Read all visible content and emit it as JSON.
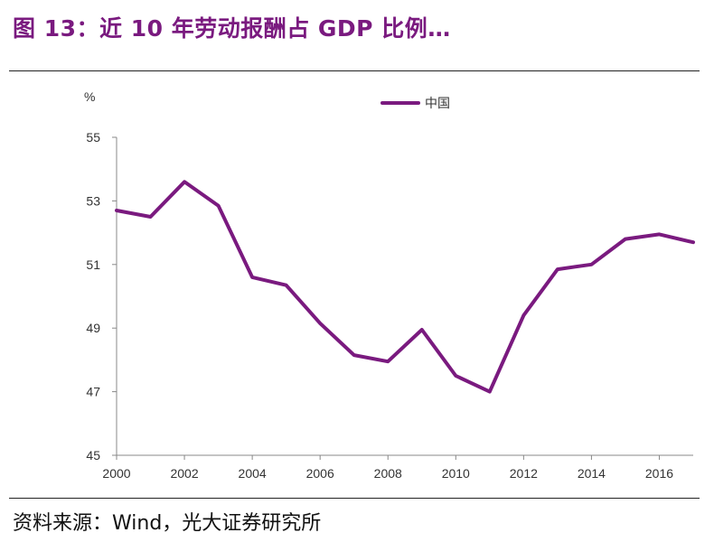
{
  "figure": {
    "title": "图 13：近 10 年劳动报酬占 GDP 比例…",
    "source": "资料来源：Wind，光大证券研究所"
  },
  "colors": {
    "series": "#7a1a7f",
    "axis": "#888888",
    "text": "#333333",
    "title": "#7a1a7f"
  },
  "chart_data": {
    "type": "line",
    "title": "",
    "ylabel": "%",
    "xlabel": "",
    "ylim": [
      45,
      55
    ],
    "xlim": [
      2000,
      2017
    ],
    "yticks": [
      45,
      47,
      49,
      51,
      53,
      55
    ],
    "xticks": [
      2000,
      2002,
      2004,
      2006,
      2008,
      2010,
      2012,
      2014,
      2016
    ],
    "legend_position": "top",
    "grid": false,
    "x": [
      2000,
      2001,
      2002,
      2003,
      2004,
      2005,
      2006,
      2007,
      2008,
      2009,
      2010,
      2011,
      2012,
      2013,
      2014,
      2015,
      2016,
      2017
    ],
    "series": [
      {
        "name": "中国",
        "values": [
          52.7,
          52.5,
          53.6,
          52.85,
          50.6,
          50.35,
          49.15,
          48.15,
          47.95,
          48.95,
          47.5,
          47.0,
          49.4,
          50.85,
          51.0,
          51.8,
          51.95,
          51.7
        ]
      }
    ]
  }
}
